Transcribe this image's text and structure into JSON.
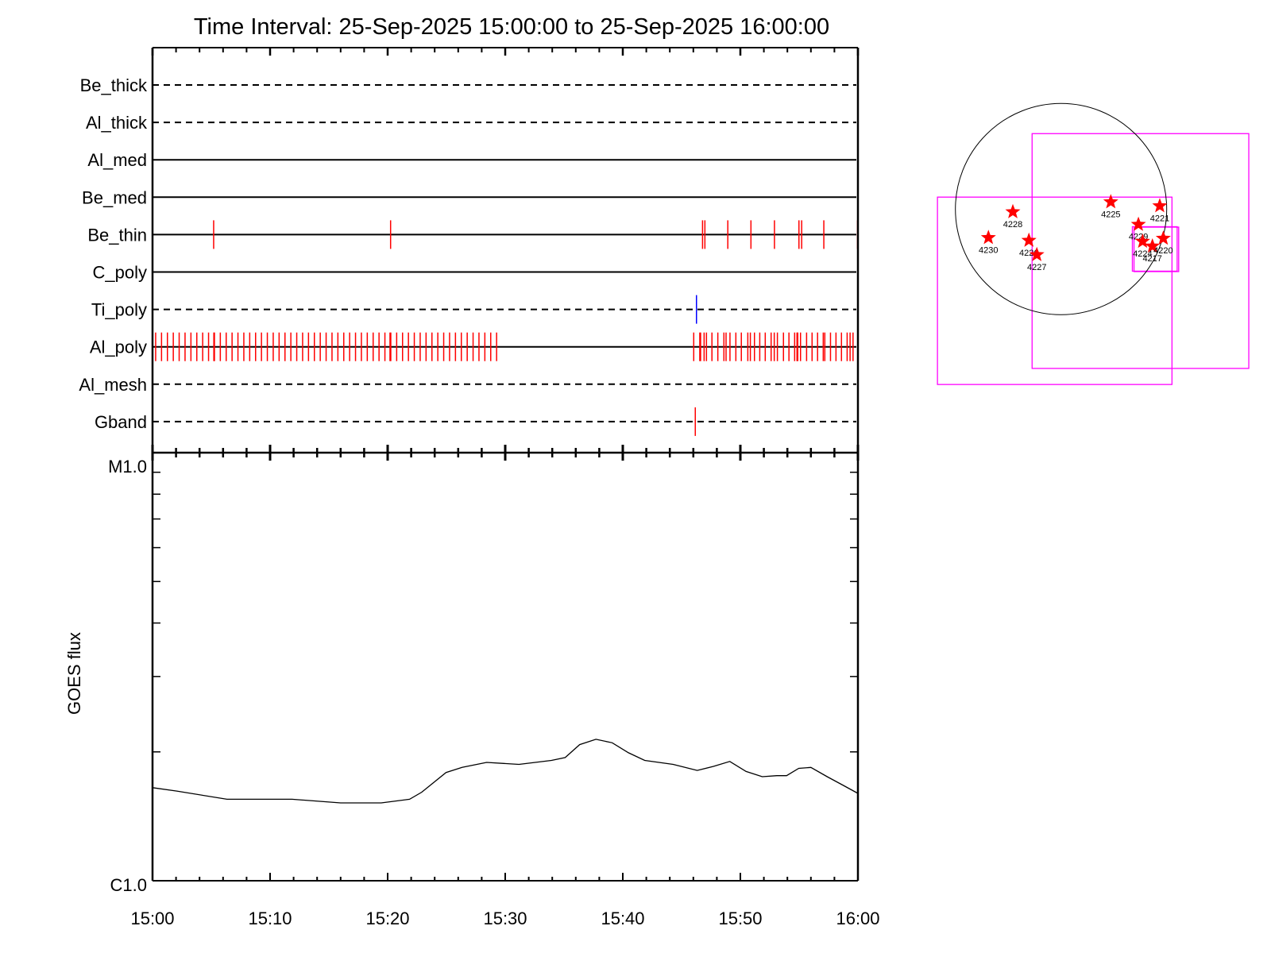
{
  "chart_data": [
    {
      "type": "event-timeline",
      "title": "Time Interval: 25-Sep-2025 15:00:00 to 25-Sep-2025 16:00:00",
      "xlim": [
        "15:00:00",
        "16:00:00"
      ],
      "colors": {
        "event": "#ff0000",
        "ti_event": "#0000ff",
        "axis": "#000000"
      },
      "rows": [
        {
          "label": "Be_thick",
          "style": "dashed",
          "events": []
        },
        {
          "label": "Al_thick",
          "style": "dashed",
          "events": []
        },
        {
          "label": "Al_med",
          "style": "solid",
          "events": []
        },
        {
          "label": "Be_med",
          "style": "solid",
          "events": []
        },
        {
          "label": "Be_thin",
          "style": "solid",
          "events": [
            "15:05:12",
            "15:20:15",
            "15:46:47",
            "15:46:59",
            "15:48:56",
            "15:50:54",
            "15:52:54",
            "15:54:59",
            "15:55:13",
            "15:57:06",
            "15:59:58"
          ]
        },
        {
          "label": "C_poly",
          "style": "solid",
          "events": []
        },
        {
          "label": "Ti_poly",
          "style": "dashed",
          "color": "#0000ff",
          "events": [
            "15:46:16"
          ]
        },
        {
          "label": "Al_poly",
          "style": "solid",
          "events": [
            "15:05:13",
            "15:20:12",
            "15:46:02",
            "15:46:33",
            "15:46:37",
            "15:46:55",
            "15:47:07",
            "15:47:35",
            "15:48:05",
            "15:48:36",
            "15:48:47",
            "15:49:07",
            "15:49:37",
            "15:50:05",
            "15:50:38",
            "15:50:51",
            "15:51:12",
            "15:51:39",
            "15:52:07",
            "15:52:37",
            "15:52:53",
            "15:53:09",
            "15:53:40",
            "15:54:08",
            "15:54:37",
            "15:54:49",
            "15:54:53",
            "15:55:07",
            "15:55:38",
            "15:56:06",
            "15:56:34",
            "15:57:03",
            "15:57:11",
            "15:57:40",
            "15:58:08",
            "15:58:36",
            "15:59:05",
            "15:59:20",
            "15:59:35"
          ],
          "regular_events": {
            "start": "15:00:16",
            "end": "15:29:16",
            "cadence_seconds": 30
          }
        },
        {
          "label": "Al_mesh",
          "style": "dashed",
          "events": []
        },
        {
          "label": "Gband",
          "style": "dashed",
          "events": [
            "15:46:10"
          ]
        }
      ]
    },
    {
      "type": "line",
      "ylabel": "GOES flux",
      "yscale": "log",
      "ylim": [
        1e-06,
        1e-05
      ],
      "ytick_labels": [
        "C1.0",
        "M1.0"
      ],
      "xlim": [
        "15:00",
        "16:00"
      ],
      "xtick_labels": [
        "15:00",
        "15:10",
        "15:20",
        "15:30",
        "15:40",
        "15:50",
        "16:00"
      ],
      "grid": false,
      "series": [
        {
          "color": "#000000",
          "x": [
            "15:00:00",
            "15:02:04",
            "15:06:20",
            "15:11:52",
            "15:16:00",
            "15:19:27",
            "15:21:52",
            "15:22:54",
            "15:24:58",
            "15:26:20",
            "15:28:25",
            "15:31:10",
            "15:33:56",
            "15:35:06",
            "15:36:20",
            "15:37:43",
            "15:39:06",
            "15:40:29",
            "15:41:52",
            "15:44:17",
            "15:46:20",
            "15:47:43",
            "15:49:06",
            "15:50:29",
            "15:51:52",
            "15:53:06",
            "15:53:56",
            "15:54:58",
            "15:56:00",
            "15:57:23",
            "15:58:46",
            "16:00:00"
          ],
          "y": [
            1.65e-06,
            1.62e-06,
            1.55e-06,
            1.55e-06,
            1.52e-06,
            1.52e-06,
            1.55e-06,
            1.61e-06,
            1.79e-06,
            1.84e-06,
            1.89e-06,
            1.87e-06,
            1.91e-06,
            1.94e-06,
            2.08e-06,
            2.14e-06,
            2.1e-06,
            1.99e-06,
            1.91e-06,
            1.87e-06,
            1.81e-06,
            1.85e-06,
            1.9e-06,
            1.8e-06,
            1.75e-06,
            1.76e-06,
            1.76e-06,
            1.83e-06,
            1.84e-06,
            1.75e-06,
            1.67e-06,
            1.6e-06
          ]
        }
      ]
    },
    {
      "type": "scatter",
      "units": "arcsec",
      "solar_radius": 960,
      "colors": {
        "limb": "#000000",
        "marker": "#ff0000",
        "fov": "#ff00ff"
      },
      "active_regions": [
        {
          "label": "4228",
          "x": -438,
          "y": -25
        },
        {
          "label": "4230",
          "x": -660,
          "y": -260
        },
        {
          "label": "4226",
          "x": -292,
          "y": -285
        },
        {
          "label": "4227",
          "x": -220,
          "y": -415
        },
        {
          "label": "4225",
          "x": 452,
          "y": 65
        },
        {
          "label": "4221",
          "x": 897,
          "y": 29
        },
        {
          "label": "4229",
          "x": 703,
          "y": -140
        },
        {
          "label": "4224",
          "x": 741,
          "y": -294
        },
        {
          "label": "4217",
          "x": 830,
          "y": -337
        },
        {
          "label": "4220",
          "x": 929,
          "y": -266
        }
      ],
      "fov_boxes": [
        {
          "x": [
            -263,
            1706
          ],
          "y": [
            -1448,
            686
          ]
        },
        {
          "x": [
            -1123,
            1008
          ],
          "y": [
            -1594,
            109
          ]
        },
        {
          "x": [
            648,
            1055
          ],
          "y": [
            -564,
            -160
          ]
        },
        {
          "x": [
            663,
            1069
          ],
          "y": [
            -568,
            -164
          ]
        }
      ]
    }
  ]
}
